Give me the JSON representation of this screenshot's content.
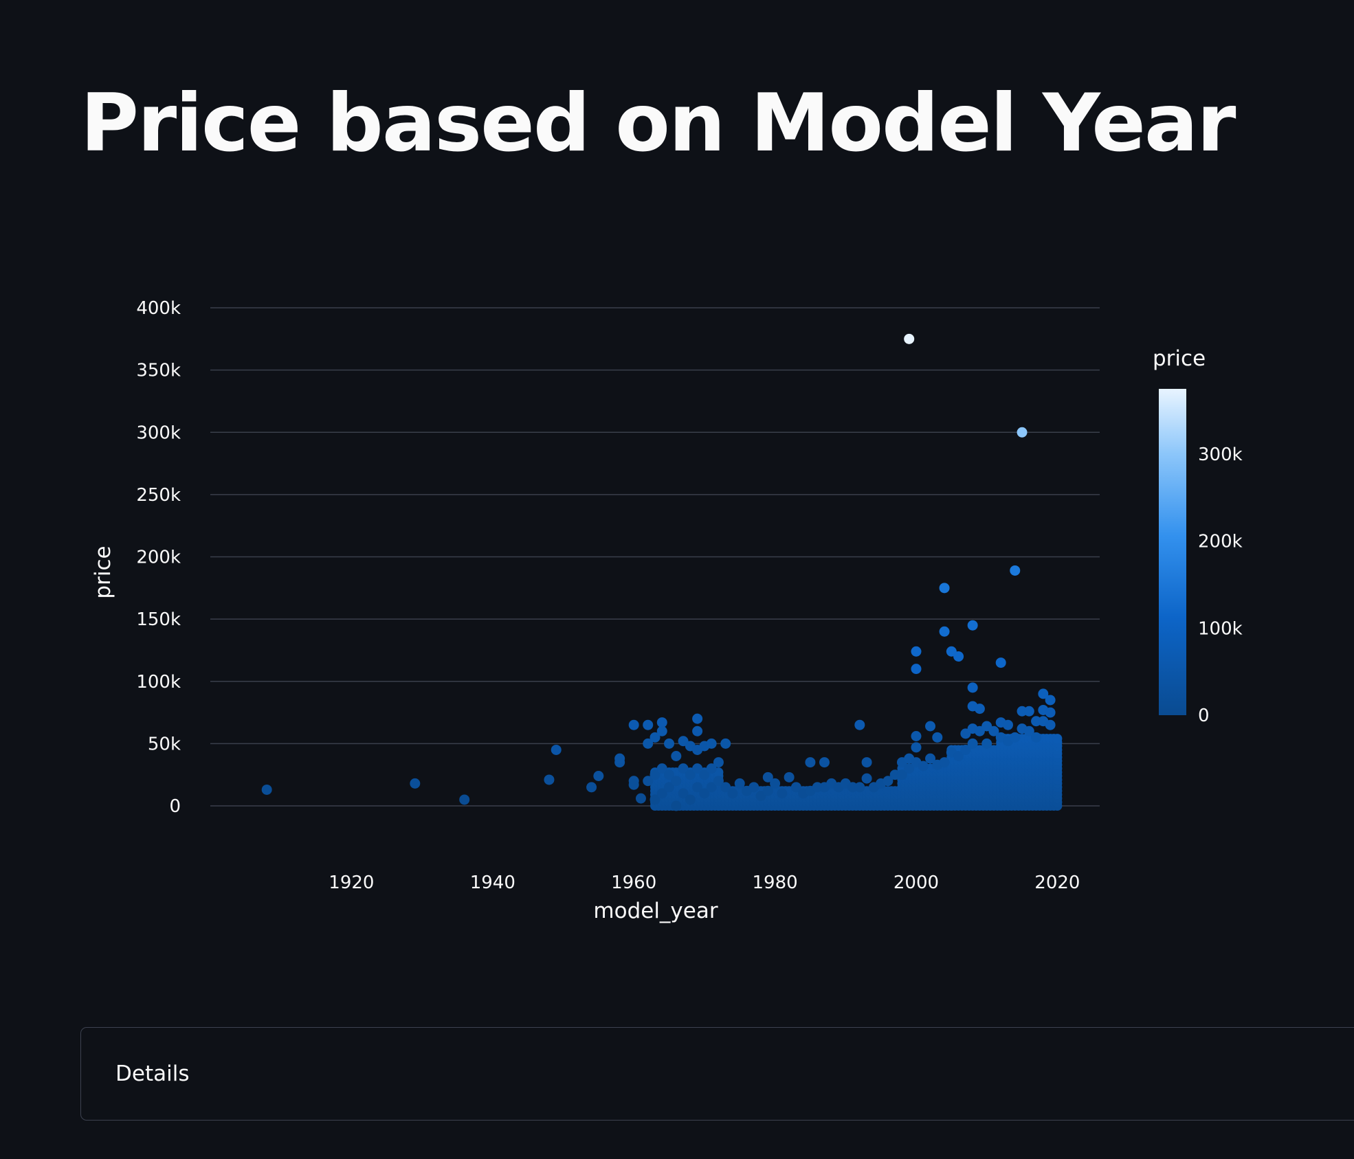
{
  "page": {
    "title": "Price based on Model Year"
  },
  "details": {
    "label": "Details"
  },
  "colors": {
    "background": "#0e1117",
    "gridline": "#3a3f4b",
    "colorscale_low": "#0a4b91",
    "colorscale_mid": "#1f7fe0",
    "colorscale_high": "#e8f4ff"
  },
  "chart_data": {
    "type": "scatter",
    "xlabel": "model_year",
    "ylabel": "price",
    "xlim": [
      1900,
      2026
    ],
    "ylim": [
      0,
      400000
    ],
    "x_ticks": [
      1920,
      1940,
      1960,
      1980,
      2000,
      2020
    ],
    "x_tick_labels": [
      "1920",
      "1940",
      "1960",
      "1980",
      "2000",
      "2020"
    ],
    "y_ticks": [
      0,
      50000,
      100000,
      150000,
      200000,
      250000,
      300000,
      350000,
      400000
    ],
    "y_tick_labels": [
      "0",
      "50k",
      "100k",
      "150k",
      "200k",
      "250k",
      "300k",
      "350k",
      "400k"
    ],
    "grid": "horizontal",
    "colorbar": {
      "title": "price",
      "range": [
        0,
        375000
      ],
      "ticks": [
        0,
        100000,
        200000,
        300000
      ],
      "tick_labels": [
        "0",
        "100k",
        "200k",
        "300k"
      ]
    },
    "points": [
      [
        1908,
        13000
      ],
      [
        1929,
        18000
      ],
      [
        1936,
        5000
      ],
      [
        1948,
        21000
      ],
      [
        1949,
        45000
      ],
      [
        1954,
        15000
      ],
      [
        1955,
        24000
      ],
      [
        1958,
        35000
      ],
      [
        1958,
        38000
      ],
      [
        1960,
        65000
      ],
      [
        1960,
        20000
      ],
      [
        1960,
        17000
      ],
      [
        1961,
        6000
      ],
      [
        1962,
        65000
      ],
      [
        1962,
        50000
      ],
      [
        1962,
        20000
      ],
      [
        1963,
        55000
      ],
      [
        1963,
        25000
      ],
      [
        1963,
        5000
      ],
      [
        1964,
        67000
      ],
      [
        1964,
        60000
      ],
      [
        1964,
        30000
      ],
      [
        1964,
        10000
      ],
      [
        1965,
        50000
      ],
      [
        1965,
        25000
      ],
      [
        1965,
        15000
      ],
      [
        1966,
        40000
      ],
      [
        1966,
        20000
      ],
      [
        1966,
        0
      ],
      [
        1967,
        52000
      ],
      [
        1967,
        30000
      ],
      [
        1967,
        10000
      ],
      [
        1968,
        48000
      ],
      [
        1968,
        25000
      ],
      [
        1968,
        5000
      ],
      [
        1969,
        70000
      ],
      [
        1969,
        60000
      ],
      [
        1969,
        45000
      ],
      [
        1969,
        30000
      ],
      [
        1969,
        15000
      ],
      [
        1970,
        48000
      ],
      [
        1970,
        25000
      ],
      [
        1970,
        10000
      ],
      [
        1971,
        50000
      ],
      [
        1971,
        30000
      ],
      [
        1971,
        15000
      ],
      [
        1972,
        35000
      ],
      [
        1972,
        20000
      ],
      [
        1973,
        50000
      ],
      [
        1973,
        15000
      ],
      [
        1974,
        10000
      ],
      [
        1975,
        18000
      ],
      [
        1976,
        12000
      ],
      [
        1977,
        15000
      ],
      [
        1978,
        8000
      ],
      [
        1979,
        23000
      ],
      [
        1979,
        12000
      ],
      [
        1980,
        18000
      ],
      [
        1981,
        10000
      ],
      [
        1982,
        23000
      ],
      [
        1983,
        15000
      ],
      [
        1984,
        10000
      ],
      [
        1985,
        35000
      ],
      [
        1985,
        12000
      ],
      [
        1986,
        15000
      ],
      [
        1987,
        35000
      ],
      [
        1987,
        15000
      ],
      [
        1988,
        18000
      ],
      [
        1989,
        15000
      ],
      [
        1990,
        18000
      ],
      [
        1991,
        15000
      ],
      [
        1992,
        65000
      ],
      [
        1992,
        15000
      ],
      [
        1993,
        35000
      ],
      [
        1993,
        22000
      ],
      [
        1994,
        15000
      ],
      [
        1995,
        18000
      ],
      [
        1996,
        20000
      ],
      [
        1997,
        25000
      ],
      [
        1998,
        35000
      ],
      [
        1998,
        25000
      ],
      [
        1999,
        375000
      ],
      [
        1999,
        38000
      ],
      [
        1999,
        30000
      ],
      [
        2000,
        124000
      ],
      [
        2000,
        110000
      ],
      [
        2000,
        56000
      ],
      [
        2000,
        47000
      ],
      [
        2000,
        35000
      ],
      [
        2001,
        32000
      ],
      [
        2002,
        64000
      ],
      [
        2002,
        38000
      ],
      [
        2003,
        55000
      ],
      [
        2003,
        33000
      ],
      [
        2004,
        175000
      ],
      [
        2004,
        140000
      ],
      [
        2004,
        35000
      ],
      [
        2005,
        124000
      ],
      [
        2005,
        43000
      ],
      [
        2006,
        120000
      ],
      [
        2006,
        40000
      ],
      [
        2007,
        58000
      ],
      [
        2007,
        45000
      ],
      [
        2008,
        145000
      ],
      [
        2008,
        95000
      ],
      [
        2008,
        80000
      ],
      [
        2008,
        62000
      ],
      [
        2008,
        50000
      ],
      [
        2009,
        78000
      ],
      [
        2009,
        60000
      ],
      [
        2010,
        64000
      ],
      [
        2010,
        50000
      ],
      [
        2011,
        60000
      ],
      [
        2012,
        115000
      ],
      [
        2012,
        67000
      ],
      [
        2012,
        55000
      ],
      [
        2013,
        65000
      ],
      [
        2013,
        52000
      ],
      [
        2014,
        189000
      ],
      [
        2014,
        55000
      ],
      [
        2015,
        300000
      ],
      [
        2015,
        76000
      ],
      [
        2015,
        62000
      ],
      [
        2016,
        76000
      ],
      [
        2016,
        60000
      ],
      [
        2017,
        68000
      ],
      [
        2017,
        55000
      ],
      [
        2018,
        90000
      ],
      [
        2018,
        77000
      ],
      [
        2018,
        68000
      ],
      [
        2019,
        85000
      ],
      [
        2019,
        75000
      ],
      [
        2019,
        65000
      ]
    ],
    "dense_bands": [
      {
        "from": 1963,
        "to": 1972,
        "max": 28000
      },
      {
        "from": 1972,
        "to": 1998,
        "max": 14000
      },
      {
        "from": 1998,
        "to": 2005,
        "max": 30000
      },
      {
        "from": 2005,
        "to": 2012,
        "max": 45000
      },
      {
        "from": 2012,
        "to": 2020,
        "max": 55000
      }
    ]
  }
}
